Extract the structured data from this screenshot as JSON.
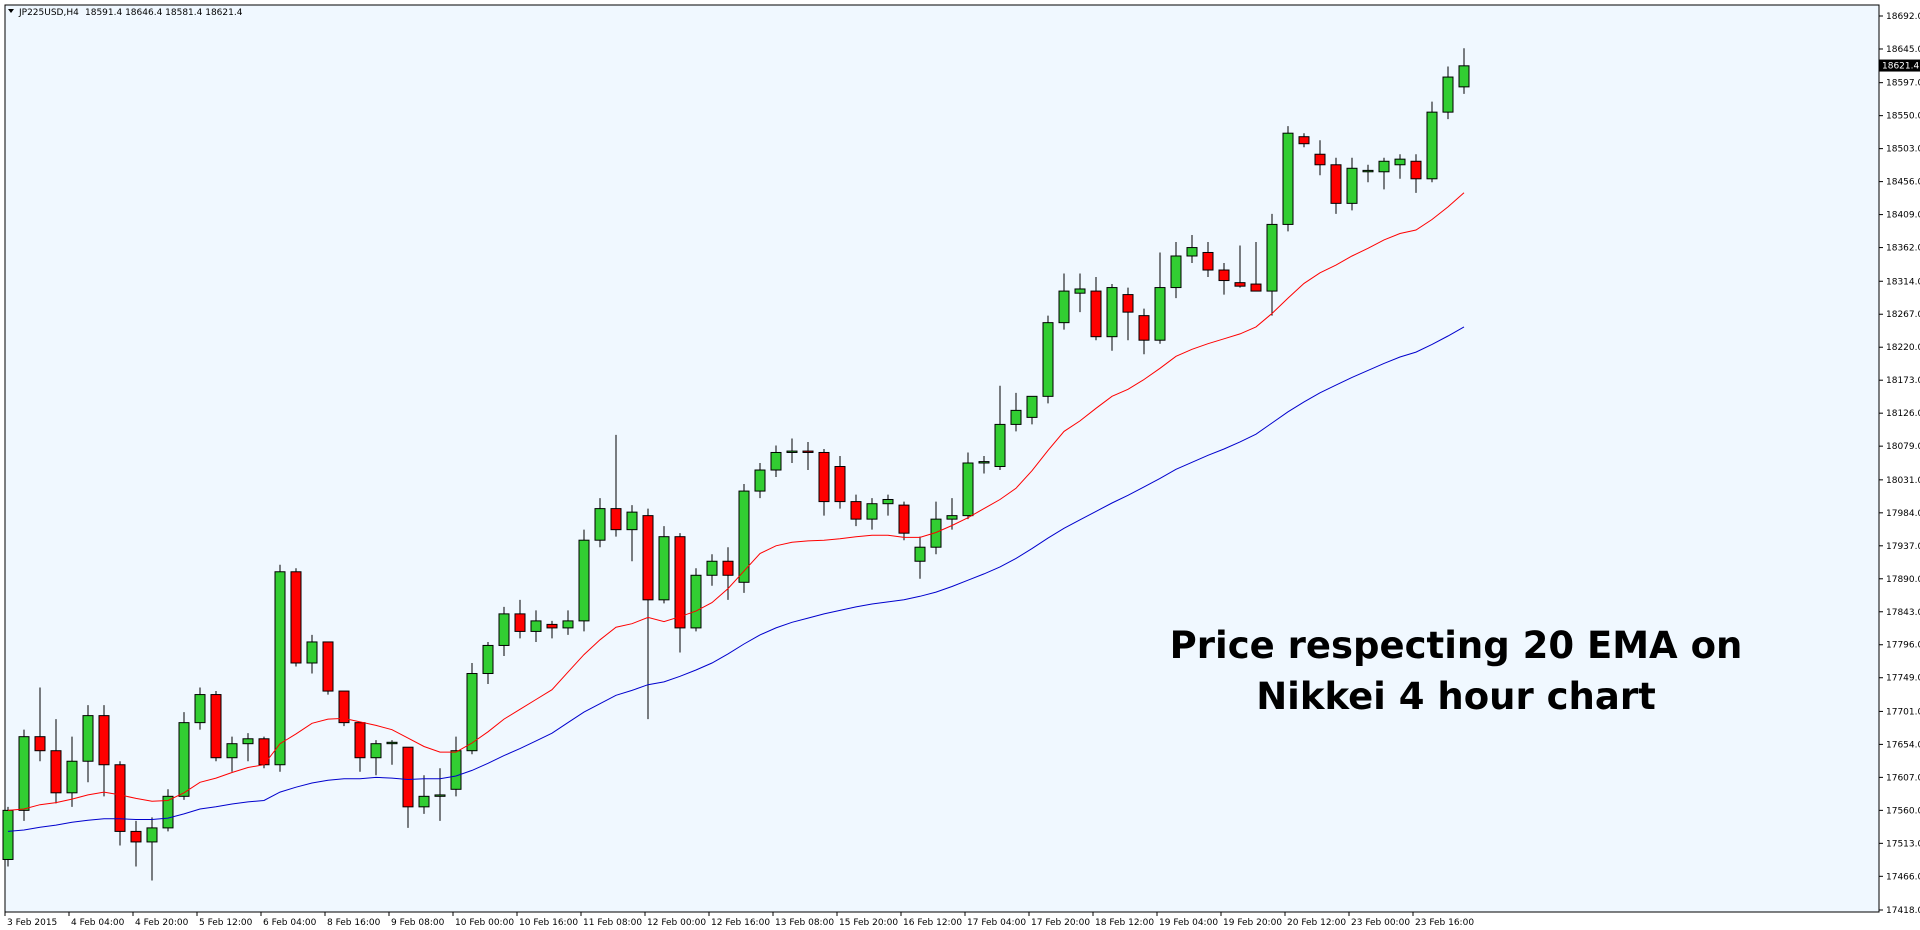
{
  "header": {
    "symbol": "JP225USD,H4",
    "ohlc": "18591.4 18646.4 18581.4 18621.4",
    "dropdown_icon": "triangle-down-icon"
  },
  "current_price": "18621.4",
  "annotation": {
    "line1": "Price respecting 20 EMA on",
    "line2": "Nikkei 4 hour chart"
  },
  "colors": {
    "background": "#f0f8ff",
    "bull": "#32cd32",
    "bear": "#ff0000",
    "ema20": "#ff0000",
    "ema50": "#0000cd"
  },
  "chart_data": {
    "type": "candlestick",
    "ylim": [
      17418,
      18692
    ],
    "y_ticks": [
      "18692.0",
      "18645.0",
      "18597.0",
      "18550.0",
      "18503.0",
      "18456.0",
      "18409.0",
      "18362.0",
      "18314.0",
      "18267.0",
      "18220.0",
      "18173.0",
      "18126.0",
      "18079.0",
      "18031.0",
      "17984.0",
      "17937.0",
      "17890.0",
      "17843.0",
      "17796.0",
      "17749.0",
      "17701.0",
      "17654.0",
      "17607.0",
      "17560.0",
      "17513.0",
      "17466.0",
      "17418.0"
    ],
    "x_ticks": [
      {
        "label": "3 Feb 2015",
        "i": 0
      },
      {
        "label": "4 Feb 04:00",
        "i": 4
      },
      {
        "label": "4 Feb 20:00",
        "i": 8
      },
      {
        "label": "5 Feb 12:00",
        "i": 12
      },
      {
        "label": "6 Feb 04:00",
        "i": 16
      },
      {
        "label": "8 Feb 16:00",
        "i": 20
      },
      {
        "label": "9 Feb 08:00",
        "i": 24
      },
      {
        "label": "10 Feb 00:00",
        "i": 28
      },
      {
        "label": "10 Feb 16:00",
        "i": 32
      },
      {
        "label": "11 Feb 08:00",
        "i": 36
      },
      {
        "label": "12 Feb 00:00",
        "i": 40
      },
      {
        "label": "12 Feb 16:00",
        "i": 44
      },
      {
        "label": "13 Feb 08:00",
        "i": 48
      },
      {
        "label": "15 Feb 20:00",
        "i": 52
      },
      {
        "label": "16 Feb 12:00",
        "i": 56
      },
      {
        "label": "17 Feb 04:00",
        "i": 60
      },
      {
        "label": "17 Feb 20:00",
        "i": 64
      },
      {
        "label": "18 Feb 12:00",
        "i": 68
      },
      {
        "label": "19 Feb 04:00",
        "i": 72
      },
      {
        "label": "19 Feb 20:00",
        "i": 76
      },
      {
        "label": "20 Feb 12:00",
        "i": 80
      },
      {
        "label": "23 Feb 00:00",
        "i": 84
      },
      {
        "label": "23 Feb 16:00",
        "i": 88
      }
    ],
    "candles": [
      {
        "o": 17490,
        "h": 17565,
        "l": 17480,
        "c": 17560
      },
      {
        "o": 17560,
        "h": 17675,
        "l": 17545,
        "c": 17665
      },
      {
        "o": 17665,
        "h": 17735,
        "l": 17630,
        "c": 17645
      },
      {
        "o": 17645,
        "h": 17690,
        "l": 17570,
        "c": 17585
      },
      {
        "o": 17585,
        "h": 17665,
        "l": 17565,
        "c": 17630
      },
      {
        "o": 17630,
        "h": 17710,
        "l": 17600,
        "c": 17695
      },
      {
        "o": 17695,
        "h": 17710,
        "l": 17580,
        "c": 17625
      },
      {
        "o": 17625,
        "h": 17630,
        "l": 17510,
        "c": 17530
      },
      {
        "o": 17530,
        "h": 17545,
        "l": 17480,
        "c": 17515
      },
      {
        "o": 17515,
        "h": 17550,
        "l": 17460,
        "c": 17535
      },
      {
        "o": 17535,
        "h": 17590,
        "l": 17530,
        "c": 17580
      },
      {
        "o": 17580,
        "h": 17700,
        "l": 17575,
        "c": 17685
      },
      {
        "o": 17685,
        "h": 17735,
        "l": 17675,
        "c": 17725
      },
      {
        "o": 17725,
        "h": 17730,
        "l": 17630,
        "c": 17635
      },
      {
        "o": 17635,
        "h": 17665,
        "l": 17615,
        "c": 17655
      },
      {
        "o": 17655,
        "h": 17670,
        "l": 17630,
        "c": 17662
      },
      {
        "o": 17662,
        "h": 17665,
        "l": 17620,
        "c": 17625
      },
      {
        "o": 17625,
        "h": 17910,
        "l": 17615,
        "c": 17900
      },
      {
        "o": 17900,
        "h": 17905,
        "l": 17765,
        "c": 17770
      },
      {
        "o": 17770,
        "h": 17810,
        "l": 17755,
        "c": 17800
      },
      {
        "o": 17800,
        "h": 17800,
        "l": 17725,
        "c": 17730
      },
      {
        "o": 17730,
        "h": 17730,
        "l": 17680,
        "c": 17685
      },
      {
        "o": 17685,
        "h": 17685,
        "l": 17615,
        "c": 17635
      },
      {
        "o": 17635,
        "h": 17660,
        "l": 17610,
        "c": 17655
      },
      {
        "o": 17655,
        "h": 17660,
        "l": 17625,
        "c": 17657
      },
      {
        "o": 17650,
        "h": 17650,
        "l": 17535,
        "c": 17565
      },
      {
        "o": 17565,
        "h": 17610,
        "l": 17555,
        "c": 17580
      },
      {
        "o": 17580,
        "h": 17620,
        "l": 17545,
        "c": 17582
      },
      {
        "o": 17590,
        "h": 17665,
        "l": 17580,
        "c": 17645
      },
      {
        "o": 17645,
        "h": 17770,
        "l": 17640,
        "c": 17755
      },
      {
        "o": 17755,
        "h": 17800,
        "l": 17740,
        "c": 17795
      },
      {
        "o": 17795,
        "h": 17850,
        "l": 17780,
        "c": 17840
      },
      {
        "o": 17840,
        "h": 17860,
        "l": 17805,
        "c": 17815
      },
      {
        "o": 17815,
        "h": 17845,
        "l": 17800,
        "c": 17830
      },
      {
        "o": 17825,
        "h": 17830,
        "l": 17805,
        "c": 17820
      },
      {
        "o": 17820,
        "h": 17845,
        "l": 17810,
        "c": 17830
      },
      {
        "o": 17830,
        "h": 17960,
        "l": 17815,
        "c": 17945
      },
      {
        "o": 17945,
        "h": 18005,
        "l": 17935,
        "c": 17990
      },
      {
        "o": 17990,
        "h": 18095,
        "l": 17950,
        "c": 17960
      },
      {
        "o": 17960,
        "h": 17995,
        "l": 17915,
        "c": 17985
      },
      {
        "o": 17980,
        "h": 17990,
        "l": 17690,
        "c": 17860
      },
      {
        "o": 17860,
        "h": 17965,
        "l": 17855,
        "c": 17950
      },
      {
        "o": 17950,
        "h": 17955,
        "l": 17785,
        "c": 17820
      },
      {
        "o": 17820,
        "h": 17905,
        "l": 17815,
        "c": 17895
      },
      {
        "o": 17895,
        "h": 17925,
        "l": 17880,
        "c": 17915
      },
      {
        "o": 17915,
        "h": 17935,
        "l": 17860,
        "c": 17895
      },
      {
        "o": 17885,
        "h": 18025,
        "l": 17870,
        "c": 18015
      },
      {
        "o": 18015,
        "h": 18055,
        "l": 18005,
        "c": 18045
      },
      {
        "o": 18045,
        "h": 18080,
        "l": 18035,
        "c": 18070
      },
      {
        "o": 18070,
        "h": 18090,
        "l": 18055,
        "c": 18072
      },
      {
        "o": 18072,
        "h": 18085,
        "l": 18045,
        "c": 18070
      },
      {
        "o": 18070,
        "h": 18075,
        "l": 17980,
        "c": 18000
      },
      {
        "o": 18050,
        "h": 18065,
        "l": 17990,
        "c": 18000
      },
      {
        "o": 18000,
        "h": 18010,
        "l": 17965,
        "c": 17975
      },
      {
        "o": 17975,
        "h": 18005,
        "l": 17960,
        "c": 17997
      },
      {
        "o": 17997,
        "h": 18010,
        "l": 17980,
        "c": 18003
      },
      {
        "o": 17995,
        "h": 18000,
        "l": 17945,
        "c": 17955
      },
      {
        "o": 17915,
        "h": 17950,
        "l": 17890,
        "c": 17935
      },
      {
        "o": 17935,
        "h": 18000,
        "l": 17925,
        "c": 17975
      },
      {
        "o": 17975,
        "h": 18005,
        "l": 17960,
        "c": 17980
      },
      {
        "o": 17980,
        "h": 18070,
        "l": 17975,
        "c": 18055
      },
      {
        "o": 18055,
        "h": 18065,
        "l": 18040,
        "c": 18057
      },
      {
        "o": 18050,
        "h": 18165,
        "l": 18045,
        "c": 18110
      },
      {
        "o": 18110,
        "h": 18155,
        "l": 18100,
        "c": 18130
      },
      {
        "o": 18120,
        "h": 18150,
        "l": 18110,
        "c": 18150
      },
      {
        "o": 18150,
        "h": 18265,
        "l": 18140,
        "c": 18255
      },
      {
        "o": 18255,
        "h": 18325,
        "l": 18245,
        "c": 18300
      },
      {
        "o": 18297,
        "h": 18325,
        "l": 18270,
        "c": 18303
      },
      {
        "o": 18300,
        "h": 18320,
        "l": 18230,
        "c": 18235
      },
      {
        "o": 18235,
        "h": 18310,
        "l": 18215,
        "c": 18305
      },
      {
        "o": 18295,
        "h": 18305,
        "l": 18230,
        "c": 18270
      },
      {
        "o": 18265,
        "h": 18275,
        "l": 18210,
        "c": 18230
      },
      {
        "o": 18230,
        "h": 18355,
        "l": 18225,
        "c": 18305
      },
      {
        "o": 18305,
        "h": 18370,
        "l": 18290,
        "c": 18350
      },
      {
        "o": 18350,
        "h": 18380,
        "l": 18340,
        "c": 18362
      },
      {
        "o": 18355,
        "h": 18370,
        "l": 18320,
        "c": 18330
      },
      {
        "o": 18330,
        "h": 18340,
        "l": 18295,
        "c": 18315
      },
      {
        "o": 18312,
        "h": 18365,
        "l": 18305,
        "c": 18307
      },
      {
        "o": 18310,
        "h": 18370,
        "l": 18300,
        "c": 18300
      },
      {
        "o": 18300,
        "h": 18410,
        "l": 18265,
        "c": 18395
      },
      {
        "o": 18395,
        "h": 18535,
        "l": 18385,
        "c": 18525
      },
      {
        "o": 18520,
        "h": 18525,
        "l": 18505,
        "c": 18510
      },
      {
        "o": 18495,
        "h": 18515,
        "l": 18465,
        "c": 18480
      },
      {
        "o": 18480,
        "h": 18490,
        "l": 18410,
        "c": 18425
      },
      {
        "o": 18425,
        "h": 18490,
        "l": 18415,
        "c": 18475
      },
      {
        "o": 18470,
        "h": 18480,
        "l": 18455,
        "c": 18472
      },
      {
        "o": 18470,
        "h": 18490,
        "l": 18445,
        "c": 18485
      },
      {
        "o": 18480,
        "h": 18495,
        "l": 18460,
        "c": 18488
      },
      {
        "o": 18485,
        "h": 18495,
        "l": 18440,
        "c": 18460
      },
      {
        "o": 18460,
        "h": 18570,
        "l": 18455,
        "c": 18555
      },
      {
        "o": 18555,
        "h": 18620,
        "l": 18545,
        "c": 18605
      },
      {
        "o": 18591,
        "h": 18646,
        "l": 18581,
        "c": 18621
      }
    ],
    "series": [
      {
        "values": [
          17560,
          17562,
          17568,
          17571,
          17576,
          17582,
          17586,
          17582,
          17577,
          17573,
          17574,
          17585,
          17600,
          17606,
          17614,
          17621,
          17625,
          17655,
          17669,
          17684,
          17690,
          17691,
          17686,
          17681,
          17675,
          17663,
          17651,
          17643,
          17643,
          17656,
          17672,
          17690,
          17704,
          17718,
          17732,
          17757,
          17782,
          17803,
          17821,
          17826,
          17835,
          17829,
          17836,
          17844,
          17856,
          17876,
          17901,
          17926,
          17937,
          17942,
          17944,
          17945,
          17947,
          17950,
          17952,
          17952,
          17949,
          17949,
          17956,
          17966,
          17977,
          17990,
          18003,
          18019,
          18044,
          18073,
          18100,
          18115,
          18133,
          18150,
          18160,
          18174,
          18190,
          18207,
          18217,
          18225,
          18232,
          18239,
          18249,
          18268,
          18290,
          18311,
          18326,
          18337,
          18350,
          18361,
          18373,
          18382,
          18387,
          18402,
          18420,
          18440
        ]
      },
      {
        "values": [
          17530,
          17532,
          17536,
          17539,
          17543,
          17546,
          17548,
          17548,
          17547,
          17547,
          17549,
          17555,
          17562,
          17565,
          17569,
          17572,
          17574,
          17586,
          17593,
          17599,
          17603,
          17605,
          17605,
          17607,
          17606,
          17604,
          17605,
          17605,
          17609,
          17617,
          17627,
          17638,
          17648,
          17659,
          17670,
          17685,
          17700,
          17712,
          17724,
          17731,
          17739,
          17743,
          17751,
          17760,
          17770,
          17783,
          17797,
          17810,
          17820,
          17828,
          17834,
          17840,
          17845,
          17850,
          17854,
          17857,
          17860,
          17865,
          17871,
          17879,
          17888,
          17897,
          17907,
          17919,
          17933,
          17948,
          17962,
          17974,
          17986,
          17998,
          18009,
          18021,
          18033,
          18046,
          18056,
          18066,
          18075,
          18085,
          18096,
          18112,
          18128,
          18142,
          18155,
          18166,
          18177,
          18187,
          18197,
          18206,
          18213,
          18224,
          18236,
          18249
        ]
      }
    ]
  }
}
